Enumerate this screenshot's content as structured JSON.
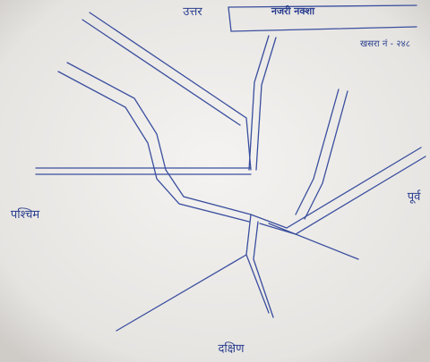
{
  "header": {
    "title": "नजरी नक्शा",
    "plot_no": "खसरा नं - २४८"
  },
  "directions": {
    "north": "उत्तर",
    "south": "दक्षिण",
    "west": "पश्चिम",
    "east": "पूर्व"
  }
}
